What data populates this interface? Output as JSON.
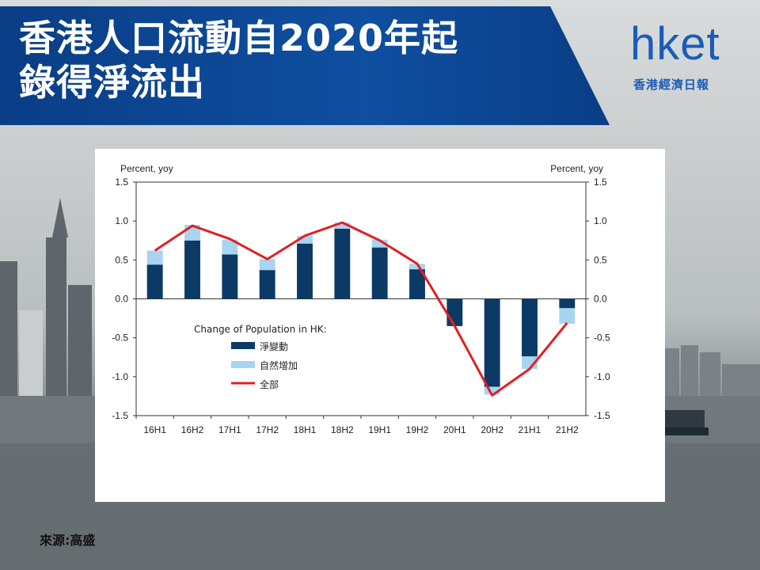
{
  "title": "香港人口流動自2020年起錄得淨流出",
  "brand": {
    "logo": "hket",
    "subtitle": "香港經濟日報"
  },
  "source": "來源:高盛",
  "colors": {
    "banner": "#0f4fa0",
    "net_change": "#0b3a66",
    "natural_increase": "#a8d4f0",
    "total": "#e02020"
  },
  "chart_data": {
    "type": "bar",
    "stacked": true,
    "left_axis_label": "Percent, yoy",
    "right_axis_label": "Percent, yoy",
    "ylim": [
      -1.5,
      1.5
    ],
    "yticks": [
      "1.5",
      "1.0",
      "0.5",
      "0.0",
      "-0.5",
      "-1.0",
      "-1.5"
    ],
    "categories": [
      "16H1",
      "16H2",
      "17H1",
      "17H2",
      "18H1",
      "18H2",
      "19H1",
      "19H2",
      "20H1",
      "20H2",
      "21H1",
      "21H2"
    ],
    "legend_title": "Change of Population in HK:",
    "series": [
      {
        "name": "淨變動",
        "kind": "bar",
        "values": [
          0.44,
          0.75,
          0.57,
          0.37,
          0.71,
          0.9,
          0.66,
          0.38,
          -0.35,
          -1.13,
          -0.74,
          -0.12
        ]
      },
      {
        "name": "自然增加",
        "kind": "bar",
        "values": [
          0.18,
          0.2,
          0.19,
          0.14,
          0.1,
          0.08,
          0.1,
          0.07,
          0.0,
          -0.1,
          -0.16,
          -0.2
        ]
      },
      {
        "name": "全部",
        "kind": "line",
        "values": [
          0.62,
          0.94,
          0.77,
          0.51,
          0.81,
          0.98,
          0.75,
          0.45,
          -0.35,
          -1.24,
          -0.9,
          -0.31
        ]
      }
    ],
    "grid": false,
    "legend_position": "center-left"
  }
}
